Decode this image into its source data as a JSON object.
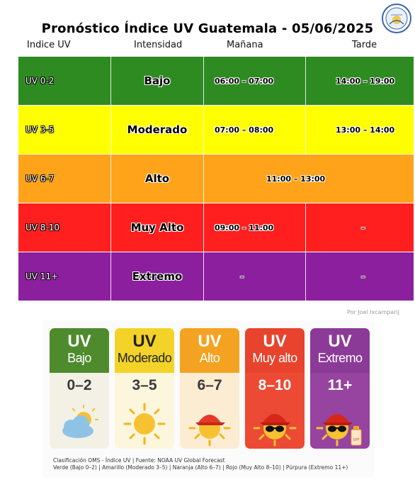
{
  "header": {
    "title": "Pronóstico Índice UV Guatemala - 05/06/2025",
    "logo_text": "INSIVUMEH"
  },
  "columns": {
    "uv": "Indice UV",
    "intensity": "Intensidad",
    "morning": "Mañana",
    "afternoon": "Tarde"
  },
  "rows": [
    {
      "uv": "UV 0-2",
      "level": "Bajo",
      "morning": "06:00 – 07:00",
      "afternoon": "14:00 – 19:00",
      "color": "#2e8b22"
    },
    {
      "uv": "UV 3-5",
      "level": "Moderado",
      "morning": "07:00 – 08:00",
      "afternoon": "13:00 – 14:00",
      "color": "#ffff00"
    },
    {
      "uv": "UV 6-7",
      "level": "Alto",
      "span": "11:00 – 13:00",
      "color": "#ffa31a"
    },
    {
      "uv": "UV 8-10",
      "level": "Muy Alto",
      "morning": "09:00 – 11:00",
      "afternoon": "–",
      "color": "#ff1f1f"
    },
    {
      "uv": "UV 11+",
      "level": "Extremo",
      "morning": "–",
      "afternoon": "–",
      "color": "#8b1f9e"
    }
  ],
  "credit": "Por Joel Ixcamparij",
  "legend": {
    "cards": [
      {
        "uv": "UV",
        "level": "Bajo",
        "range": "0–2",
        "icon": "cloud-sun-icon",
        "top_color": "#4d8b2c",
        "bottom_color": "#f3f1e6",
        "range_color": "#3a3a3a"
      },
      {
        "uv": "UV",
        "level": "Moderado",
        "range": "3–5",
        "icon": "sun-icon",
        "top_color": "#f3d328",
        "bottom_color": "#fbf6dc",
        "range_color": "#3a3a3a"
      },
      {
        "uv": "UV",
        "level": "Alto",
        "range": "6–7",
        "icon": "sun-cap-icon",
        "top_color": "#f3a321",
        "bottom_color": "#fcecd2",
        "range_color": "#3a3a3a"
      },
      {
        "uv": "UV",
        "level": "Muy alto",
        "range": "8–10",
        "icon": "sun-cap-sunglasses-icon",
        "top_color": "#e8432c",
        "bottom_color": "#ec4a34",
        "range_color": "#ffffff"
      },
      {
        "uv": "UV",
        "level": "Extremo",
        "range": "11+",
        "icon": "sun-cap-sunglasses-spf-icon",
        "top_color": "#8c3a98",
        "bottom_color": "#96449f",
        "range_color": "#ffffff"
      }
    ],
    "spf_label": "SPF",
    "footnote1": "Clasificación OMS - Índice UV | Fuente: NOAA UV Global Forecast",
    "footnote2": "Verde (Bajo 0–2) | Amarillo (Moderado 3–5) | Naranja (Alto 6–7) | Rojo (Muy Alto 8–10) | Púrpura (Extremo 11+)"
  }
}
